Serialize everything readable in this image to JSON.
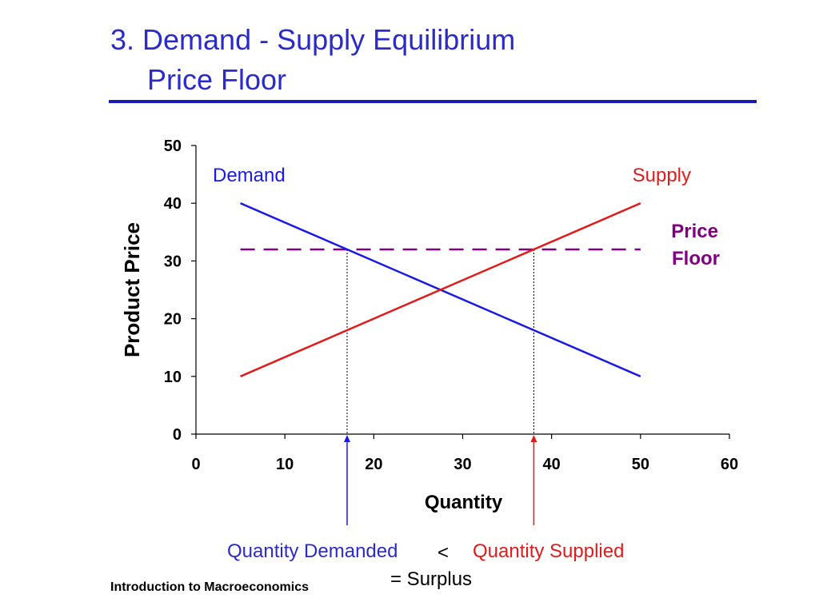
{
  "slide": {
    "title_line1": "3. Demand - Supply Equilibrium",
    "title_line2": "Price Floor",
    "footer": "Introduction to Macroeconomics",
    "quantity_demanded_label": "Quantity Demanded",
    "less_than": "<",
    "quantity_supplied_label": "Quantity Supplied",
    "surplus_label": "= Surplus"
  },
  "colors": {
    "title": "#2b2bcc",
    "demand": "#1a1ae6",
    "supply": "#e31a1a",
    "price_floor": "#800080"
  },
  "chart_data": {
    "type": "line",
    "xlabel": "Quantity",
    "ylabel": "Product Price",
    "xlim": [
      0,
      60
    ],
    "ylim": [
      0,
      50
    ],
    "x_ticks": [
      0,
      10,
      20,
      30,
      40,
      50,
      60
    ],
    "y_ticks": [
      0,
      10,
      20,
      30,
      40,
      50
    ],
    "grid": false,
    "series": [
      {
        "name": "Demand",
        "color": "#1a1ae6",
        "points": [
          [
            5,
            40
          ],
          [
            50,
            10
          ]
        ]
      },
      {
        "name": "Supply",
        "color": "#e31a1a",
        "points": [
          [
            5,
            10
          ],
          [
            50,
            40
          ]
        ]
      }
    ],
    "price_floor": {
      "label_line1": "Price",
      "label_line2": "Floor",
      "price": 32,
      "x_start": 5,
      "x_end": 50,
      "style": "dashed"
    },
    "quantity_demanded_at_floor": 17,
    "quantity_supplied_at_floor": 38
  }
}
